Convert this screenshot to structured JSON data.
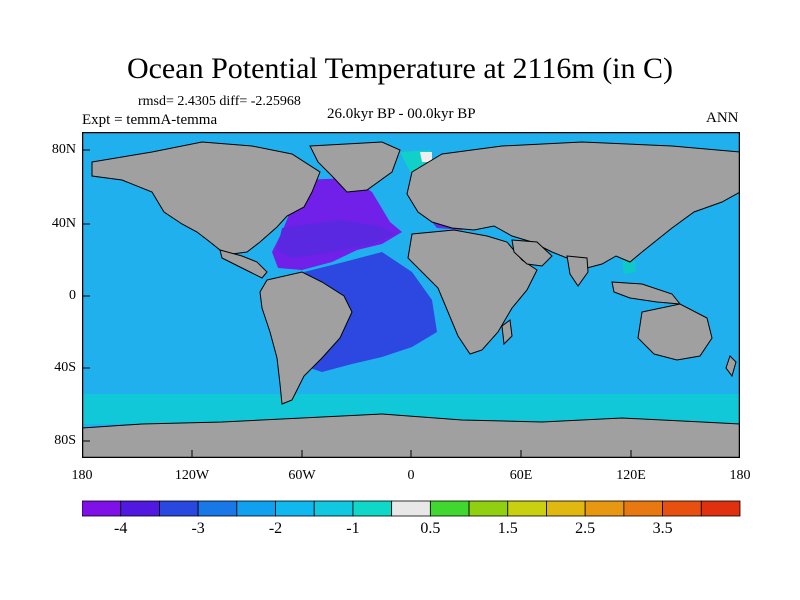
{
  "title": "Ocean Potential Temperature at 2116m (in C)",
  "stats": "rmsd= 2.4305 diff= -2.25968",
  "experiment": "Expt = temmA-temma",
  "period": "26.0kyr BP - 00.0kyr BP",
  "season": "ANN",
  "map": {
    "lat_ticks": [
      "80N",
      "40N",
      "0",
      "40S",
      "80S"
    ],
    "lon_ticks": [
      "180",
      "120W",
      "60W",
      "0",
      "60E",
      "120E",
      "180"
    ],
    "colors": {
      "land": "#a0a0a0",
      "ocean_main": "#20b0ee",
      "southern_ocean": "#10c8d8",
      "atlantic_north": "#7020e8",
      "atlantic_south": "#2c48e0",
      "pacific_west_warm": "#e04010",
      "arctic_band": "#10d0c8"
    }
  },
  "colorbar": {
    "colors": [
      "#8010e8",
      "#5018e0",
      "#2848e0",
      "#1878e8",
      "#10a0f0",
      "#10b8f0",
      "#10c8e0",
      "#10d8c8",
      "#e8e8e8",
      "#40d830",
      "#90d010",
      "#c8d010",
      "#e0b810",
      "#e89810",
      "#e87810",
      "#e85010",
      "#e03010"
    ],
    "labels": [
      "-4",
      "-3",
      "-2",
      "-1",
      "0.5",
      "1.5",
      "2.5",
      "3.5"
    ]
  }
}
